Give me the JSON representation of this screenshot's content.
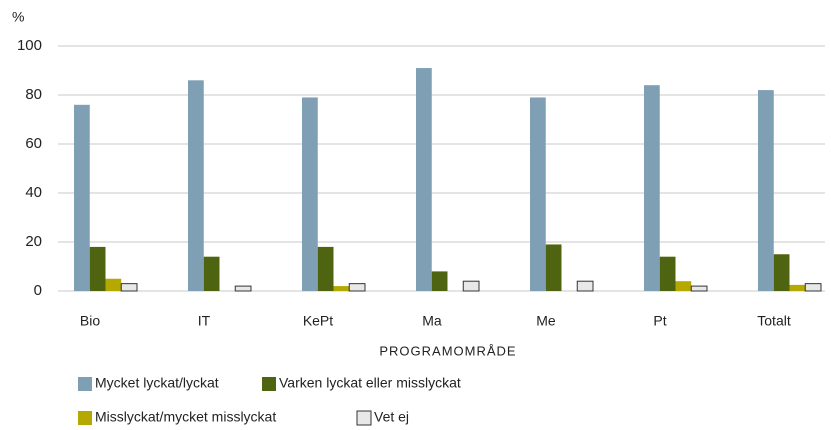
{
  "chart_data": {
    "type": "bar",
    "y_axis_label": "%",
    "x_axis_label": "PROGRAMOMRÅDE",
    "categories": [
      "Bio",
      "IT",
      "KePt",
      "Ma",
      "Me",
      "Pt",
      "Totalt"
    ],
    "series": [
      {
        "name": "Mycket lyckat/lyckat",
        "color": "#7f9fb5",
        "values": [
          76,
          86,
          79,
          91,
          79,
          84,
          82
        ]
      },
      {
        "name": "Varken lyckat eller misslyckat",
        "color": "#4e6410",
        "values": [
          18,
          14,
          18,
          8,
          19,
          14,
          15
        ]
      },
      {
        "name": "Misslyckat/mycket misslyckat",
        "color": "#b5a800",
        "values": [
          5,
          0,
          2,
          0,
          0,
          4,
          2.5
        ]
      },
      {
        "name": "Vet ej",
        "color": "#e8e8e8",
        "values": [
          3,
          2,
          3,
          4,
          4,
          2,
          3
        ]
      }
    ],
    "ylim": [
      0,
      100
    ],
    "yticks": [
      0,
      20,
      40,
      60,
      80,
      100
    ],
    "grid": true
  }
}
